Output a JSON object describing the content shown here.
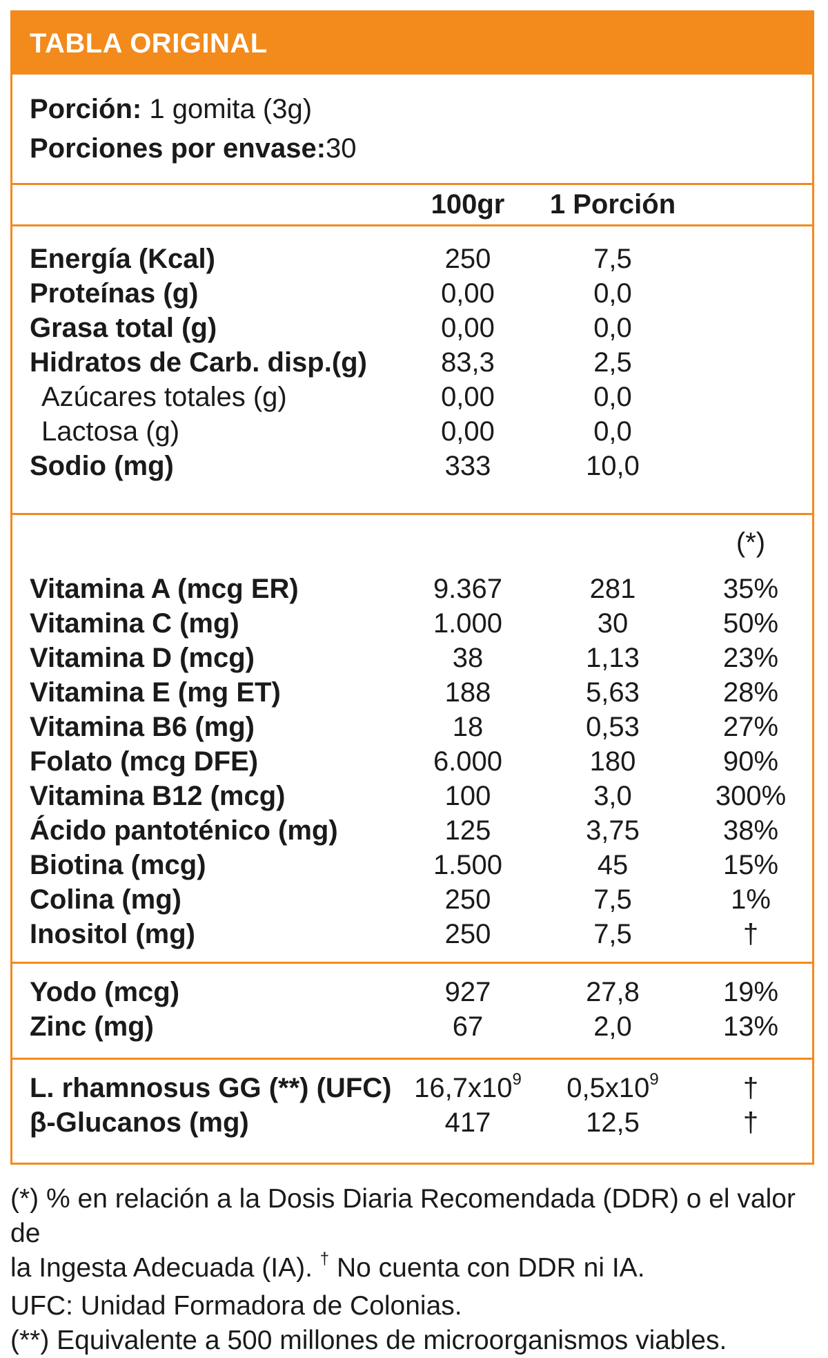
{
  "title": "TABLA ORIGINAL",
  "serving": {
    "portion_label": "Porción:",
    "portion_value": "1 gomita (3g)",
    "per_pack_label": "Porciones por envase:",
    "per_pack_value": "30"
  },
  "columns": {
    "per100": "100gr",
    "per_portion": "1 Porción",
    "ddr_mark": "(*)"
  },
  "macros": [
    {
      "name": "Energía (Kcal)",
      "v100": "250",
      "vp": "7,5"
    },
    {
      "name": "Proteínas (g)",
      "v100": "0,00",
      "vp": "0,0"
    },
    {
      "name": "Grasa total (g)",
      "v100": "0,00",
      "vp": "0,0"
    },
    {
      "name": "Hidratos de Carb. disp.(g)",
      "v100": "83,3",
      "vp": "2,5"
    },
    {
      "name": "Azúcares totales (g)",
      "v100": "0,00",
      "vp": "0,0"
    },
    {
      "name": "Lactosa (g)",
      "v100": "0,00",
      "vp": "0,0"
    },
    {
      "name": "Sodio (mg)",
      "v100": "333",
      "vp": "10,0"
    }
  ],
  "vitamins": [
    {
      "name": "Vitamina A (mcg ER)",
      "v100": "9.367",
      "vp": "281",
      "ddr": "35%"
    },
    {
      "name": "Vitamina C (mg)",
      "v100": "1.000",
      "vp": "30",
      "ddr": "50%"
    },
    {
      "name": "Vitamina D (mcg)",
      "v100": "38",
      "vp": "1,13",
      "ddr": "23%"
    },
    {
      "name": "Vitamina E (mg ET)",
      "v100": "188",
      "vp": "5,63",
      "ddr": "28%"
    },
    {
      "name": "Vitamina B6 (mg)",
      "v100": "18",
      "vp": "0,53",
      "ddr": "27%"
    },
    {
      "name": "Folato (mcg DFE)",
      "v100": "6.000",
      "vp": "180",
      "ddr": "90%"
    },
    {
      "name": "Vitamina B12 (mcg)",
      "v100": "100",
      "vp": "3,0",
      "ddr": "300%"
    },
    {
      "name": "Ácido pantoténico (mg)",
      "v100": "125",
      "vp": "3,75",
      "ddr": "38%"
    },
    {
      "name": "Biotina (mcg)",
      "v100": "1.500",
      "vp": "45",
      "ddr": "15%"
    },
    {
      "name": "Colina (mg)",
      "v100": "250",
      "vp": "7,5",
      "ddr": "1%"
    },
    {
      "name": "Inositol (mg)",
      "v100": "250",
      "vp": "7,5",
      "ddr": "†"
    }
  ],
  "minerals": [
    {
      "name": "Yodo (mcg)",
      "v100": "927",
      "vp": "27,8",
      "ddr": "19%"
    },
    {
      "name": "Zinc (mg)",
      "v100": "67",
      "vp": "2,0",
      "ddr": "13%"
    }
  ],
  "others": [
    {
      "name": "L. rhamnosus GG (**) (UFC)",
      "v100": "16,7x10",
      "v100_exp": "9",
      "vp": "0,5x10",
      "vp_exp": "9",
      "ddr": "†"
    },
    {
      "name": "β-Glucanos (mg)",
      "v100": "417",
      "vp": "12,5",
      "ddr": "†"
    }
  ],
  "footnotes": {
    "line1": "(*) % en relación a la Dosis Diaria Recomendada (DDR) o el valor de",
    "line2a": "la Ingesta Adecuada (IA). ",
    "line2_dagger": "†",
    "line2b": " No cuenta con DDR ni IA.",
    "line3": "UFC: Unidad Formadora de Colonias.",
    "line4": "(**) Equivalente a 500 millones de microorganismos viables."
  },
  "colors": {
    "accent": "#f28a1c",
    "text": "#1a1a1a"
  }
}
